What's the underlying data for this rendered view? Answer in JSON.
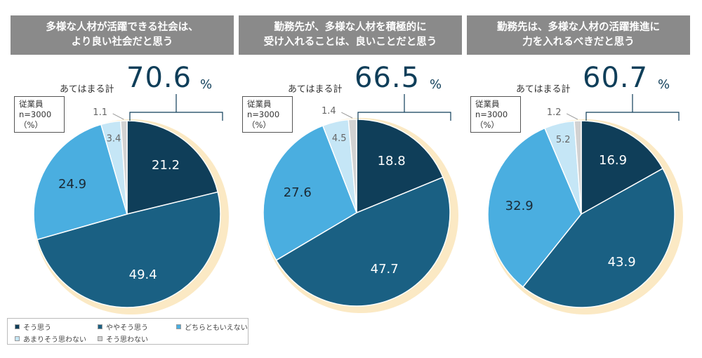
{
  "chart_data": [
    {
      "type": "pie",
      "title_lines": [
        "多様な人材が活躍できる社会は、",
        "より良い社会だと思う"
      ],
      "total_label": "あてはまる計",
      "total_value": "70.6",
      "total_unit": "%",
      "sample_lines": [
        "従業員",
        "n=3000",
        "（%）"
      ],
      "slices": [
        {
          "category": "そう思う",
          "value": 21.2,
          "label": "21.2",
          "color": "#0f3e59"
        },
        {
          "category": "ややそう思う",
          "value": 49.4,
          "label": "49.4",
          "color": "#1a6083"
        },
        {
          "category": "どちらともいえない",
          "value": 24.9,
          "label": "24.9",
          "color": "#4aaee0"
        },
        {
          "category": "あまりそう思わない",
          "value": 3.4,
          "label": "3.4",
          "color": "#c5e6f6"
        },
        {
          "category": "そう思わない",
          "value": 1.1,
          "label": "1.1",
          "color": "#d2d2d2"
        }
      ]
    },
    {
      "type": "pie",
      "title_lines": [
        "勤務先が、多様な人材を積極的に",
        "受け入れることは、良いことだと思う"
      ],
      "total_label": "あてはまる計",
      "total_value": "66.5",
      "total_unit": "%",
      "sample_lines": [
        "従業員",
        "n=3000",
        "（%）"
      ],
      "slices": [
        {
          "category": "そう思う",
          "value": 18.8,
          "label": "18.8",
          "color": "#0f3e59"
        },
        {
          "category": "ややそう思う",
          "value": 47.7,
          "label": "47.7",
          "color": "#1a6083"
        },
        {
          "category": "どちらともいえない",
          "value": 27.6,
          "label": "27.6",
          "color": "#4aaee0"
        },
        {
          "category": "あまりそう思わない",
          "value": 4.5,
          "label": "4.5",
          "color": "#c5e6f6"
        },
        {
          "category": "そう思わない",
          "value": 1.4,
          "label": "1.4",
          "color": "#d2d2d2"
        }
      ]
    },
    {
      "type": "pie",
      "title_lines": [
        "勤務先は、多様な人材の活躍推進に",
        "力を入れるべきだと思う"
      ],
      "total_label": "あてはまる計",
      "total_value": "60.7",
      "total_unit": "%",
      "sample_lines": [
        "従業員",
        "n=3000",
        "（%）"
      ],
      "slices": [
        {
          "category": "そう思う",
          "value": 16.9,
          "label": "16.9",
          "color": "#0f3e59"
        },
        {
          "category": "ややそう思う",
          "value": 43.9,
          "label": "43.9",
          "color": "#1a6083"
        },
        {
          "category": "どちらともいえない",
          "value": 32.9,
          "label": "32.9",
          "color": "#4aaee0"
        },
        {
          "category": "あまりそう思わない",
          "value": 5.2,
          "label": "5.2",
          "color": "#c5e6f6"
        },
        {
          "category": "そう思わない",
          "value": 1.2,
          "label": "1.2",
          "color": "#d2d2d2"
        }
      ]
    }
  ],
  "legend": [
    {
      "label": "そう思う",
      "color": "#0f3e59"
    },
    {
      "label": "ややそう思う",
      "color": "#1a6083"
    },
    {
      "label": "どちらともいえない",
      "color": "#4aaee0"
    },
    {
      "label": "あまりそう思わない",
      "color": "#c5e6f6"
    },
    {
      "label": "そう思わない",
      "color": "#d2d2d2"
    }
  ],
  "colors": {
    "title_bar": "#8a8a8a",
    "pie_glow": "#fbe9c4",
    "accent_text": "#0f3e59"
  }
}
